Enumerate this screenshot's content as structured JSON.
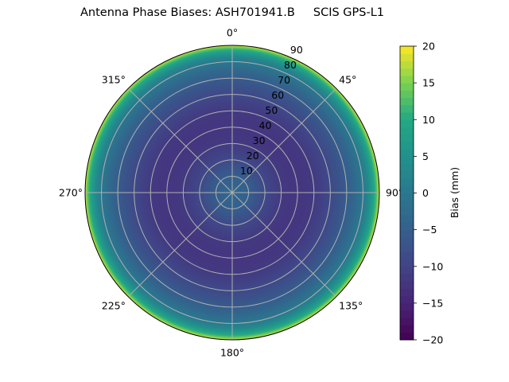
{
  "chart_data": {
    "type": "heatmap",
    "projection": "polar",
    "title": "Antenna Phase Biases: ASH701941.B     SCIS GPS-L1",
    "theta_direction": "clockwise",
    "theta_zero": "north",
    "theta_ticks": [
      "0°",
      "45°",
      "90°",
      "135°",
      "180°",
      "225°",
      "270°",
      "315°"
    ],
    "theta_tick_values": [
      0,
      45,
      90,
      135,
      180,
      225,
      270,
      315
    ],
    "r_ticks": [
      "10",
      "20",
      "30",
      "40",
      "50",
      "60",
      "70",
      "80",
      "90"
    ],
    "r_tick_values": [
      10,
      20,
      30,
      40,
      50,
      60,
      70,
      80,
      90
    ],
    "rlim": [
      0,
      90
    ],
    "grid": true,
    "radial_profile": {
      "r": [
        0,
        5,
        10,
        15,
        20,
        25,
        30,
        35,
        40,
        45,
        50,
        55,
        60,
        65,
        70,
        75,
        80,
        83,
        86,
        88,
        90
      ],
      "bias": [
        -3,
        -4,
        -5,
        -7,
        -9,
        -10.5,
        -11.5,
        -12,
        -12,
        -12,
        -11.5,
        -10.5,
        -9,
        -7.5,
        -5.5,
        -3,
        0,
        3,
        8,
        12,
        18
      ]
    },
    "colorbar": {
      "label": "Bias (mm)",
      "colormap": "viridis",
      "range": [
        -20,
        20
      ],
      "ticks": [
        "20",
        "15",
        "10",
        "5",
        "0",
        "−5",
        "−10",
        "−15",
        "−20"
      ],
      "tick_values": [
        20,
        15,
        10,
        5,
        0,
        -5,
        -10,
        -15,
        -20
      ]
    }
  }
}
